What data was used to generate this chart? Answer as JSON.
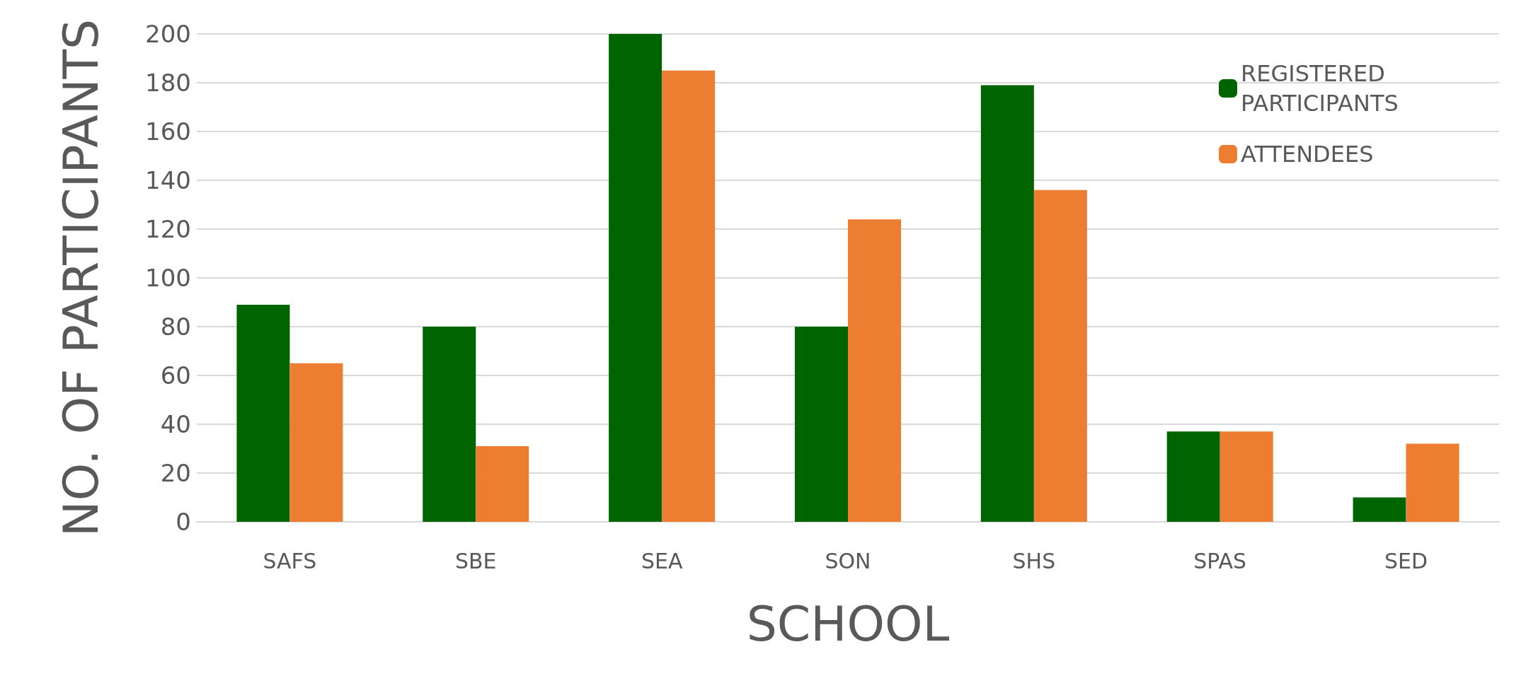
{
  "chart_data": {
    "type": "bar",
    "xlabel": "SCHOOL",
    "ylabel": "NO. OF PARTICIPANTS",
    "categories": [
      "SAFS",
      "SBE",
      "SEA",
      "SON",
      "SHS",
      "SPAS",
      "SED"
    ],
    "series": [
      {
        "name": "REGISTERED PARTICIPANTS",
        "color": "#006400",
        "values": [
          89,
          80,
          200,
          80,
          179,
          37,
          10
        ]
      },
      {
        "name": "ATTENDEES",
        "color": "#ed7d31",
        "values": [
          65,
          31,
          185,
          124,
          136,
          37,
          32
        ]
      }
    ],
    "ylim": [
      0,
      200
    ],
    "yticks": [
      0,
      20,
      40,
      60,
      80,
      100,
      120,
      140,
      160,
      180,
      200
    ],
    "grid": "y",
    "legend": "top right"
  }
}
